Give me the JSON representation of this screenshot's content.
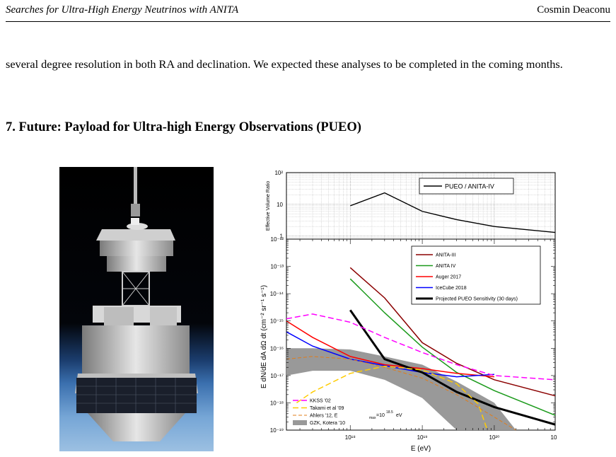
{
  "header": {
    "title": "Searches for Ultra-High Energy Neutrinos with ANITA",
    "author": "Cosmin Deaconu"
  },
  "body": {
    "paragraph": "several degree resolution in both RA and declination. We expected these analyses to be completed in the coming months.",
    "section_heading": "7. Future: Payload for Ultra-high Energy Observations (PUEO)"
  },
  "figure_image": {
    "alt": "PUEO payload rendering"
  },
  "chart_data": [
    {
      "type": "line",
      "ylabel": "Effective Volume Ratio",
      "yscale": "log",
      "ylim": [
        0.8,
        100
      ],
      "xlim": [
        1.3e+17,
        7e+20
      ],
      "y_tick_labels": [
        "10²",
        "10",
        "1"
      ],
      "y_ticks": [
        100,
        10,
        1
      ],
      "grid": true,
      "legend": "top-right",
      "series": [
        {
          "name": "PUEO / ANITA-IV",
          "color": "#000000",
          "x": [
            1e+18,
            3e+18,
            1e+19,
            3e+19,
            1e+20,
            7e+20
          ],
          "y": [
            9,
            23,
            6,
            3.3,
            2.0,
            1.3
          ]
        }
      ]
    },
    {
      "type": "line",
      "ylabel": "E dN/dE dA dΩ dt (cm⁻² sr⁻¹ s⁻¹)",
      "xlabel": "E (eV)",
      "xscale": "log",
      "yscale": "log",
      "xlim": [
        1.3e+17,
        7e+20
      ],
      "ylim": [
        1e-19,
        1e-12
      ],
      "x_tick_labels": [
        "10¹⁸",
        "10¹⁹",
        "10²⁰",
        "10"
      ],
      "x_ticks": [
        1e+18,
        1e+19,
        1e+20,
        7e+20
      ],
      "y_tick_labels": [
        "10⁻¹²",
        "10⁻¹³",
        "10⁻¹⁴",
        "10⁻¹⁵",
        "10⁻¹⁶",
        "10⁻¹⁷",
        "10⁻¹⁸",
        "10⁻¹⁹"
      ],
      "y_ticks": [
        1e-12,
        1e-13,
        1e-14,
        1e-15,
        1e-16,
        1e-17,
        1e-18,
        1e-19
      ],
      "grid": false,
      "legend": [
        "top-right",
        "bottom-left"
      ],
      "series": [
        {
          "name": "ANITA-III",
          "color": "#8b0000",
          "width": 1.5,
          "x": [
            1e+18,
            3e+18,
            1e+19,
            3e+19,
            1e+20,
            7e+20
          ],
          "y": [
            9e-14,
            7e-15,
            1.6e-16,
            2.8e-17,
            7e-18,
            1.8e-18
          ]
        },
        {
          "name": "ANITA IV",
          "color": "#1a9a1a",
          "width": 1.5,
          "x": [
            1e+18,
            3e+18,
            1e+19,
            3e+19,
            1e+20,
            7e+20
          ],
          "y": [
            3.5e-14,
            2e-15,
            1.1e-16,
            1.3e-17,
            2.8e-18,
            3.5e-19
          ]
        },
        {
          "name": "Auger 2017",
          "color": "#ff0000",
          "width": 1.5,
          "x": [
            1.3e+17,
            3e+17,
            1e+18,
            3e+18,
            1e+19,
            3e+19,
            1e+20
          ],
          "y": [
            1e-15,
            2.5e-16,
            5e-17,
            2.5e-17,
            1.8e-17,
            1.2e-17,
            9e-18
          ]
        },
        {
          "name": "IceCube 2018",
          "color": "#0000ff",
          "width": 1.5,
          "x": [
            1.3e+17,
            3e+17,
            1e+18,
            3e+18,
            1e+19,
            3e+19,
            1e+20
          ],
          "y": [
            4e-16,
            1.2e-16,
            4e-17,
            2.3e-17,
            1.3e-17,
            9e-18,
            1.1e-17
          ]
        },
        {
          "name": "Projected PUEO Sensitivity (30 days)",
          "color": "#000000",
          "width": 3,
          "x": [
            1e+18,
            3e+18,
            1e+19,
            3e+19,
            1e+20,
            7e+20
          ],
          "y": [
            2.5e-15,
            4e-17,
            1.3e-17,
            2.5e-18,
            7e-19,
            1.6e-19
          ]
        },
        {
          "name": "KKSS '02",
          "color": "#ff00ff",
          "width": 1.5,
          "dash": "8,4",
          "x": [
            1.3e+17,
            3e+17,
            1e+18,
            3e+18,
            1e+19,
            3e+19,
            1e+20,
            7e+20
          ],
          "y": [
            1.2e-15,
            1.8e-15,
            9e-16,
            2.5e-16,
            7e-17,
            2.5e-17,
            1e-17,
            7e-18
          ]
        },
        {
          "name": "Takami et al '09",
          "color": "#ffcc00",
          "width": 1.5,
          "dash": "8,4",
          "x": [
            1.8e+17,
            3e+17,
            1e+18,
            3e+18,
            1e+19,
            3e+19,
            6e+19,
            8e+19
          ],
          "y": [
            1e-18,
            2.5e-18,
            1.2e-17,
            2.2e-17,
            1.6e-17,
            5e-18,
            9e-19,
            1e-19
          ]
        },
        {
          "name": "Ahlers '12, E = 10^18.5 eV",
          "color": "#e07c1a",
          "width": 1,
          "dash": "5,3",
          "x": [
            1.3e+17,
            3e+17,
            1e+18,
            3e+18,
            1e+19,
            3e+19,
            1e+20,
            2e+20
          ],
          "y": [
            4e-17,
            5e-17,
            4e-17,
            2e-17,
            8e-18,
            2e-18,
            3e-19,
            1e-19
          ]
        },
        {
          "name": "GZK, Kotera '10",
          "color": "#999999",
          "band": true,
          "x": [
            1.3e+17,
            3e+17,
            1e+18,
            3e+18,
            1e+19,
            3e+19,
            1e+20,
            2e+20
          ],
          "lower": [
            1e-17,
            1.5e-17,
            1.5e-17,
            7e-18,
            1.5e-18,
            1e-19,
            1e-19,
            1e-19
          ],
          "upper": [
            1e-16,
            1e-16,
            9e-17,
            5e-17,
            2.5e-17,
            6e-18,
            1e-18,
            1e-19
          ]
        }
      ],
      "legend_top": [
        "ANITA-III",
        "ANITA IV",
        "Auger 2017",
        "IceCube 2018",
        "Projected PUEO Sensitivity (30 days)"
      ],
      "legend_bottom": [
        "KKSS '02",
        "Takami et al '09",
        "Ahlers '12, E",
        "GZK, Kotera '10"
      ],
      "legend_ahlers_sub": "max",
      "legend_ahlers_value": "=10",
      "legend_ahlers_exp": "18.5",
      "legend_ahlers_unit": "eV"
    }
  ]
}
